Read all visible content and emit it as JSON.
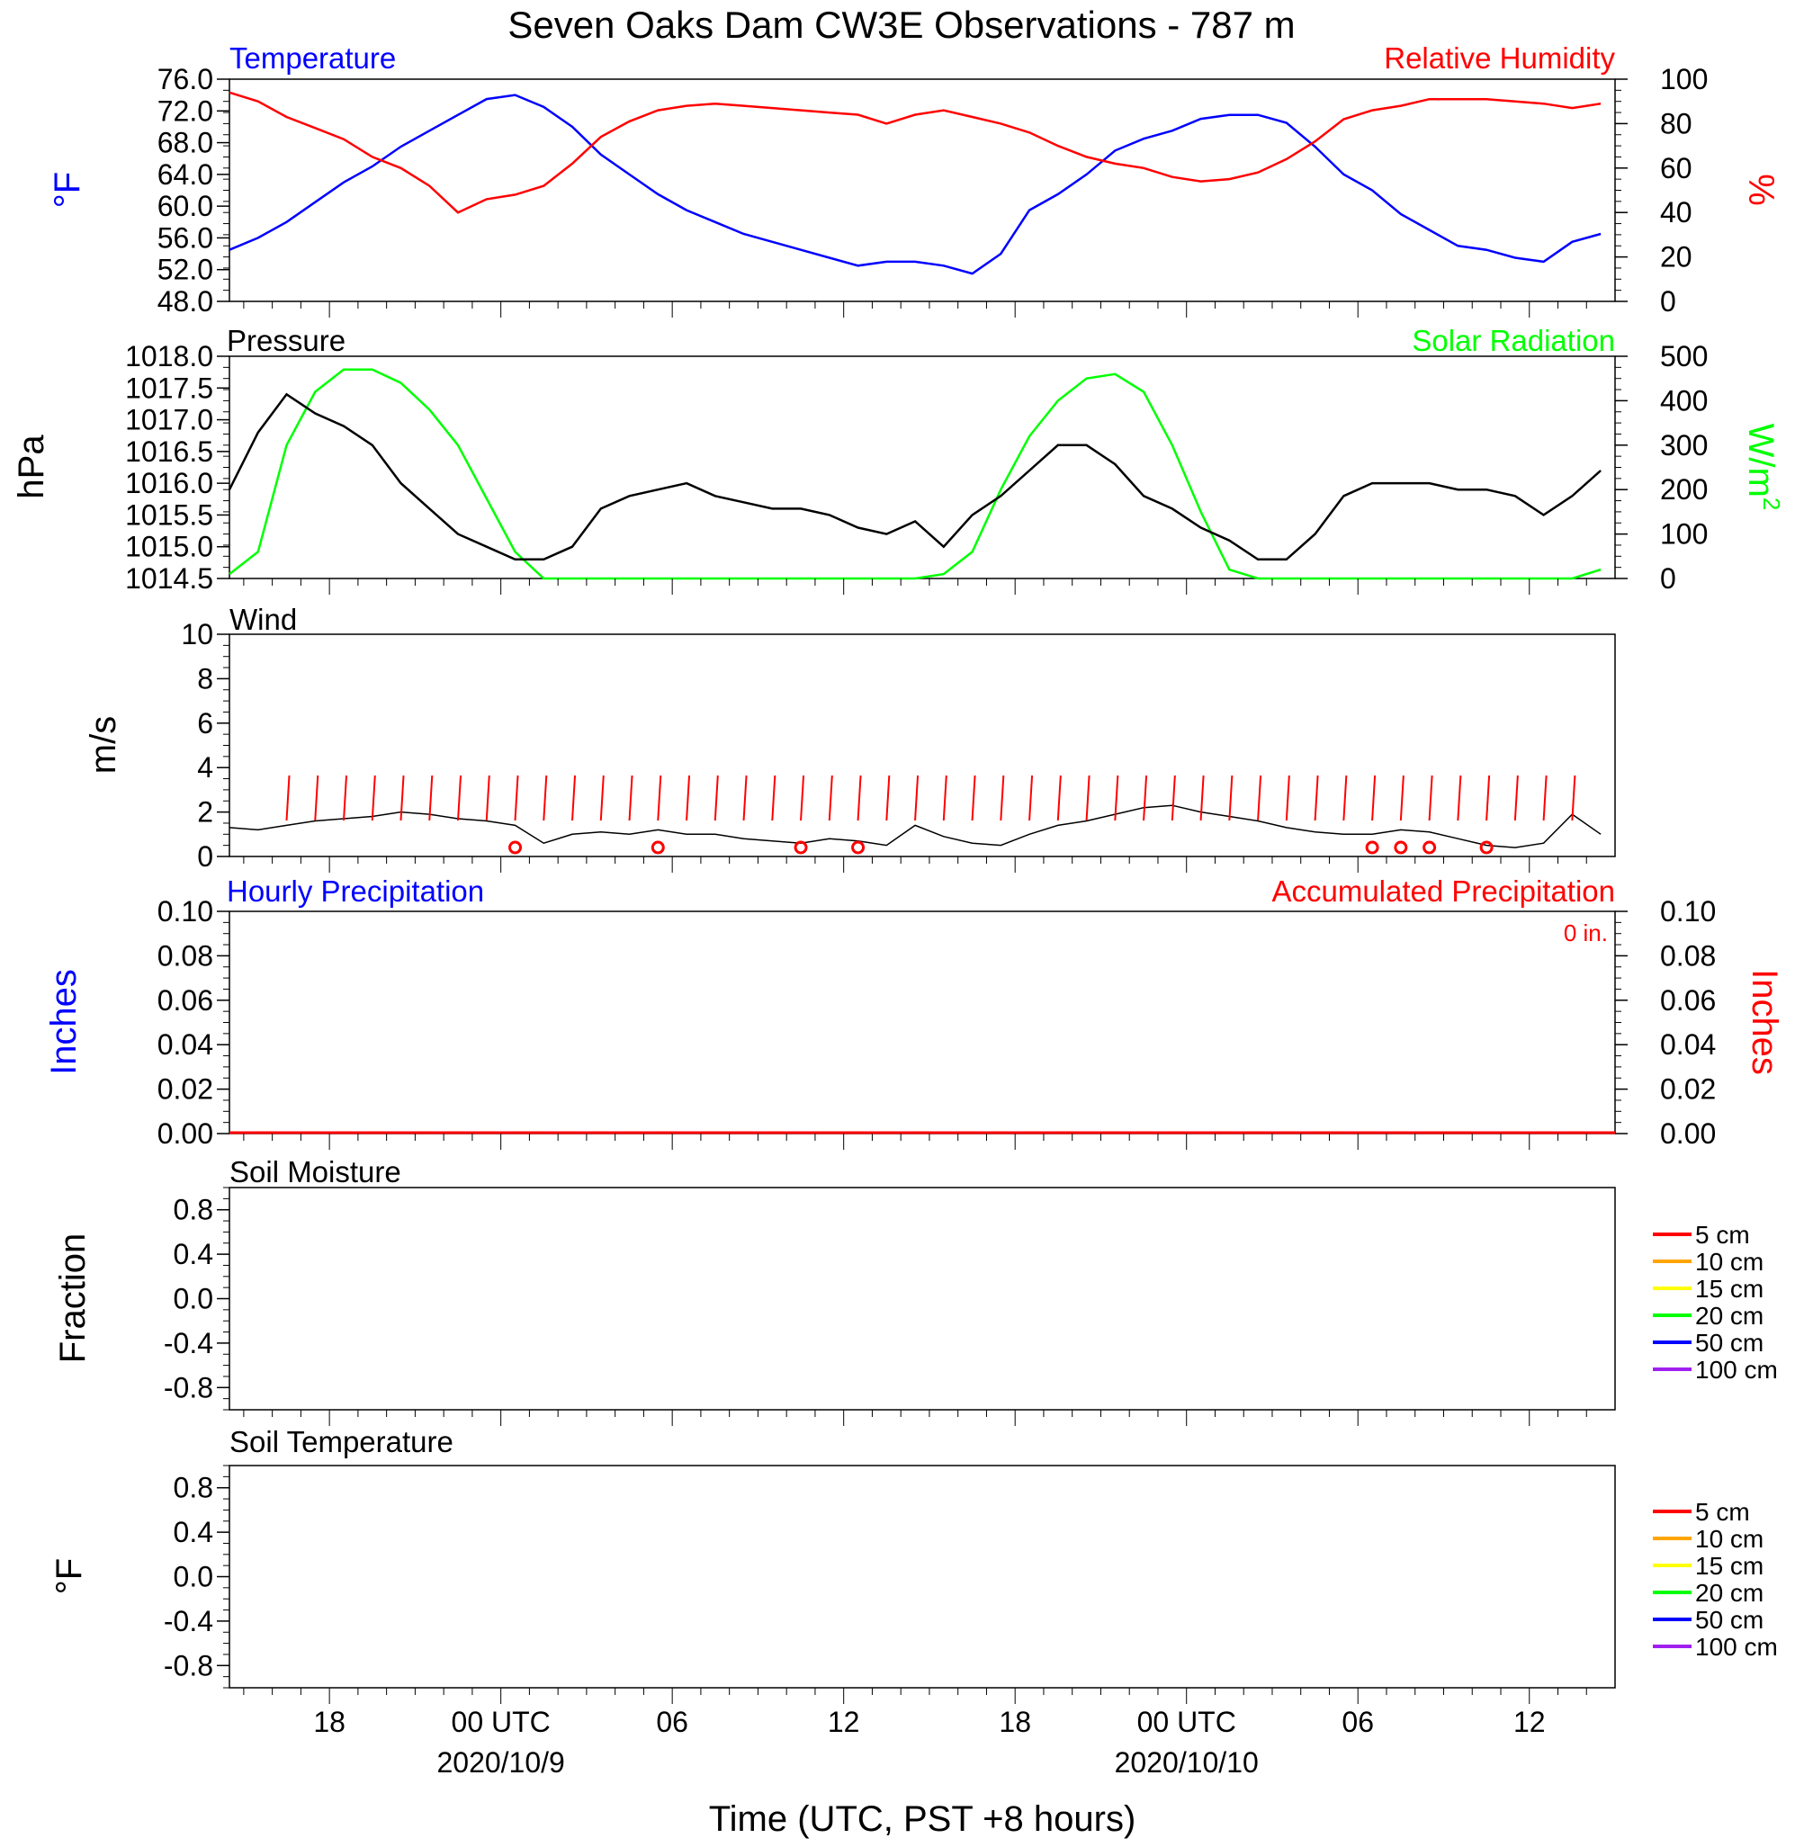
{
  "figure": {
    "title": "Seven Oaks Dam CW3E Observations - 787 m",
    "x_axis_label": "Time (UTC, PST +8 hours)",
    "x_tick_labels": [
      "18",
      "00 UTC",
      "06",
      "12",
      "18",
      "00 UTC",
      "06",
      "12"
    ],
    "x_date_labels": [
      "2020/10/9",
      "2020/10/10"
    ]
  },
  "colors": {
    "temperature": "#0000ff",
    "humidity": "#ff0000",
    "pressure": "#000000",
    "solar": "#00ff00",
    "wind_speed": "#000000",
    "wind_barb": "#ff0000",
    "hourly_precip": "#0000ff",
    "accum_precip": "#ff0000"
  },
  "chart_data": [
    {
      "type": "line",
      "panel": "temperature-humidity",
      "left_title": "Temperature",
      "right_title": "Relative Humidity",
      "left_ylabel": "°F",
      "right_ylabel": "%",
      "left_ticks": [
        "76.0",
        "72.0",
        "68.0",
        "64.0",
        "60.0",
        "56.0",
        "52.0",
        "48.0"
      ],
      "right_ticks": [
        "100",
        "80",
        "60",
        "40",
        "20",
        "0"
      ],
      "x_hours": [
        0,
        1,
        2,
        3,
        4,
        5,
        6,
        7,
        8,
        9,
        10,
        11,
        12,
        13,
        14,
        15,
        16,
        17,
        18,
        19,
        20,
        21,
        22,
        23,
        24,
        25,
        26,
        27,
        28,
        29,
        30,
        31,
        32,
        33,
        34,
        35,
        36,
        37,
        38,
        39,
        40,
        41,
        42,
        43,
        44,
        45,
        46,
        47,
        48
      ],
      "ylim_left": [
        48,
        76
      ],
      "ylim_right": [
        0,
        100
      ],
      "series": [
        {
          "name": "Temperature",
          "axis": "left",
          "values": [
            54.5,
            56,
            58,
            60.5,
            63,
            65,
            67.5,
            69.5,
            71.5,
            73.5,
            74,
            72.5,
            70,
            66.5,
            64,
            61.5,
            59.5,
            58,
            56.5,
            55.5,
            54.5,
            53.5,
            52.5,
            53,
            53,
            52.5,
            51.5,
            54,
            59.5,
            61.5,
            64,
            67,
            68.5,
            69.5,
            71,
            71.5,
            71.5,
            70.5,
            67.5,
            64,
            62,
            59,
            57,
            55,
            54.5,
            53.5,
            53,
            55.5,
            56.5
          ]
        },
        {
          "name": "Relative Humidity",
          "axis": "right",
          "values": [
            94,
            90,
            83,
            78,
            73,
            65,
            60,
            52,
            40,
            46,
            48,
            52,
            62,
            74,
            81,
            86,
            88,
            89,
            88,
            87,
            86,
            85,
            84,
            80,
            84,
            86,
            83,
            80,
            76,
            70,
            65,
            62,
            60,
            56,
            54,
            55,
            58,
            64,
            72,
            82,
            86,
            88,
            91,
            91,
            91,
            90,
            89,
            87,
            89
          ]
        }
      ]
    },
    {
      "type": "line",
      "panel": "pressure-solar",
      "left_title": "Pressure",
      "right_title": "Solar Radiation",
      "left_ylabel": "hPa",
      "right_ylabel": "W/m",
      "right_ylabel_sup": "2",
      "left_ticks": [
        "1018.0",
        "1017.5",
        "1017.0",
        "1016.5",
        "1016.0",
        "1015.5",
        "1015.0",
        "1014.5"
      ],
      "right_ticks": [
        "500",
        "400",
        "300",
        "200",
        "100",
        "0"
      ],
      "x_hours": [
        0,
        1,
        2,
        3,
        4,
        5,
        6,
        7,
        8,
        9,
        10,
        11,
        12,
        13,
        14,
        15,
        16,
        17,
        18,
        19,
        20,
        21,
        22,
        23,
        24,
        25,
        26,
        27,
        28,
        29,
        30,
        31,
        32,
        33,
        34,
        35,
        36,
        37,
        38,
        39,
        40,
        41,
        42,
        43,
        44,
        45,
        46,
        47,
        48
      ],
      "ylim_left": [
        1014.5,
        1018
      ],
      "ylim_right": [
        0,
        500
      ],
      "series": [
        {
          "name": "Pressure",
          "axis": "left",
          "values": [
            1015.9,
            1016.8,
            1017.4,
            1017.1,
            1016.9,
            1016.6,
            1016.0,
            1015.6,
            1015.2,
            1015.0,
            1014.8,
            1014.8,
            1015.0,
            1015.6,
            1015.8,
            1015.9,
            1016.0,
            1015.8,
            1015.7,
            1015.6,
            1015.6,
            1015.5,
            1015.3,
            1015.2,
            1015.4,
            1015.0,
            1015.5,
            1015.8,
            1016.2,
            1016.6,
            1016.6,
            1016.3,
            1015.8,
            1015.6,
            1015.3,
            1015.1,
            1014.8,
            1014.8,
            1015.2,
            1015.8,
            1016.0,
            1016.0,
            1016.0,
            1015.9,
            1015.9,
            1015.8,
            1015.5,
            1015.8,
            1016.2
          ]
        },
        {
          "name": "Solar Radiation",
          "axis": "right",
          "values": [
            10,
            60,
            300,
            420,
            470,
            470,
            440,
            380,
            300,
            180,
            60,
            0,
            0,
            0,
            0,
            0,
            0,
            0,
            0,
            0,
            0,
            0,
            0,
            0,
            0,
            10,
            60,
            200,
            320,
            400,
            450,
            460,
            420,
            300,
            150,
            20,
            0,
            0,
            0,
            0,
            0,
            0,
            0,
            0,
            0,
            0,
            0,
            0,
            20
          ]
        }
      ]
    },
    {
      "type": "line",
      "panel": "wind",
      "left_title": "Wind",
      "left_ylabel": "m/s",
      "left_ticks": [
        "10",
        "8",
        "6",
        "4",
        "2",
        "0"
      ],
      "ylim": [
        0,
        10
      ],
      "x_hours": [
        0,
        1,
        2,
        3,
        4,
        5,
        6,
        7,
        8,
        9,
        10,
        11,
        12,
        13,
        14,
        15,
        16,
        17,
        18,
        19,
        20,
        21,
        22,
        23,
        24,
        25,
        26,
        27,
        28,
        29,
        30,
        31,
        32,
        33,
        34,
        35,
        36,
        37,
        38,
        39,
        40,
        41,
        42,
        43,
        44,
        45,
        46,
        47,
        48
      ],
      "series": [
        {
          "name": "Wind Speed",
          "values": [
            1.3,
            1.2,
            1.4,
            1.6,
            1.7,
            1.8,
            2.0,
            1.9,
            1.7,
            1.6,
            1.4,
            0.6,
            1.0,
            1.1,
            1.0,
            1.2,
            1.0,
            1.0,
            0.8,
            0.7,
            0.6,
            0.8,
            0.7,
            0.5,
            1.4,
            0.9,
            0.6,
            0.5,
            1.0,
            1.4,
            1.6,
            1.9,
            2.2,
            2.3,
            2.0,
            1.8,
            1.6,
            1.3,
            1.1,
            1.0,
            1.0,
            1.2,
            1.1,
            0.8,
            0.5,
            0.4,
            0.6,
            1.9,
            1.0
          ]
        }
      ],
      "barb_hours": [
        2,
        3,
        4,
        5,
        6,
        7,
        8,
        9,
        10,
        11,
        12,
        13,
        14,
        15,
        16,
        17,
        18,
        19,
        20,
        21,
        22,
        23,
        24,
        25,
        26,
        27,
        28,
        29,
        30,
        31,
        32,
        33,
        34,
        35,
        36,
        37,
        38,
        39,
        40,
        41,
        42,
        43,
        44,
        45,
        46,
        47
      ],
      "calm_hours": [
        10,
        15,
        20,
        22,
        40,
        41,
        42,
        44
      ]
    },
    {
      "type": "line",
      "panel": "precipitation",
      "left_title": "Hourly Precipitation",
      "right_title": "Accumulated Precipitation",
      "annotation": "0 in.",
      "left_ylabel": "Inches",
      "right_ylabel": "Inches",
      "left_ticks": [
        "0.10",
        "0.08",
        "0.06",
        "0.04",
        "0.02",
        "0.00"
      ],
      "right_ticks": [
        "0.10",
        "0.08",
        "0.06",
        "0.04",
        "0.02",
        "0.00"
      ],
      "ylim": [
        0,
        0.1
      ],
      "series": [
        {
          "name": "Hourly Precipitation",
          "values": [
            0,
            0
          ]
        },
        {
          "name": "Accumulated Precipitation",
          "values": [
            0,
            0
          ]
        }
      ]
    },
    {
      "type": "line",
      "panel": "soil-moisture",
      "left_title": "Soil Moisture",
      "left_ylabel": "Fraction",
      "left_ticks": [
        "0.8",
        "0.4",
        "0.0",
        "-0.4",
        "-0.8"
      ],
      "ylim": [
        -1,
        1
      ],
      "legend": [
        {
          "label": "5 cm",
          "color": "#ff0000"
        },
        {
          "label": "10 cm",
          "color": "#ffa500"
        },
        {
          "label": "15 cm",
          "color": "#ffff00"
        },
        {
          "label": "20 cm",
          "color": "#00ff00"
        },
        {
          "label": "50 cm",
          "color": "#0000ff"
        },
        {
          "label": "100 cm",
          "color": "#a020f0"
        }
      ]
    },
    {
      "type": "line",
      "panel": "soil-temperature",
      "left_title": "Soil Temperature",
      "left_ylabel": "°F",
      "left_ticks": [
        "0.8",
        "0.4",
        "0.0",
        "-0.4",
        "-0.8"
      ],
      "ylim": [
        -1,
        1
      ],
      "legend": [
        {
          "label": "5 cm",
          "color": "#ff0000"
        },
        {
          "label": "10 cm",
          "color": "#ffa500"
        },
        {
          "label": "15 cm",
          "color": "#ffff00"
        },
        {
          "label": "20 cm",
          "color": "#00ff00"
        },
        {
          "label": "50 cm",
          "color": "#0000ff"
        },
        {
          "label": "100 cm",
          "color": "#a020f0"
        }
      ]
    }
  ]
}
